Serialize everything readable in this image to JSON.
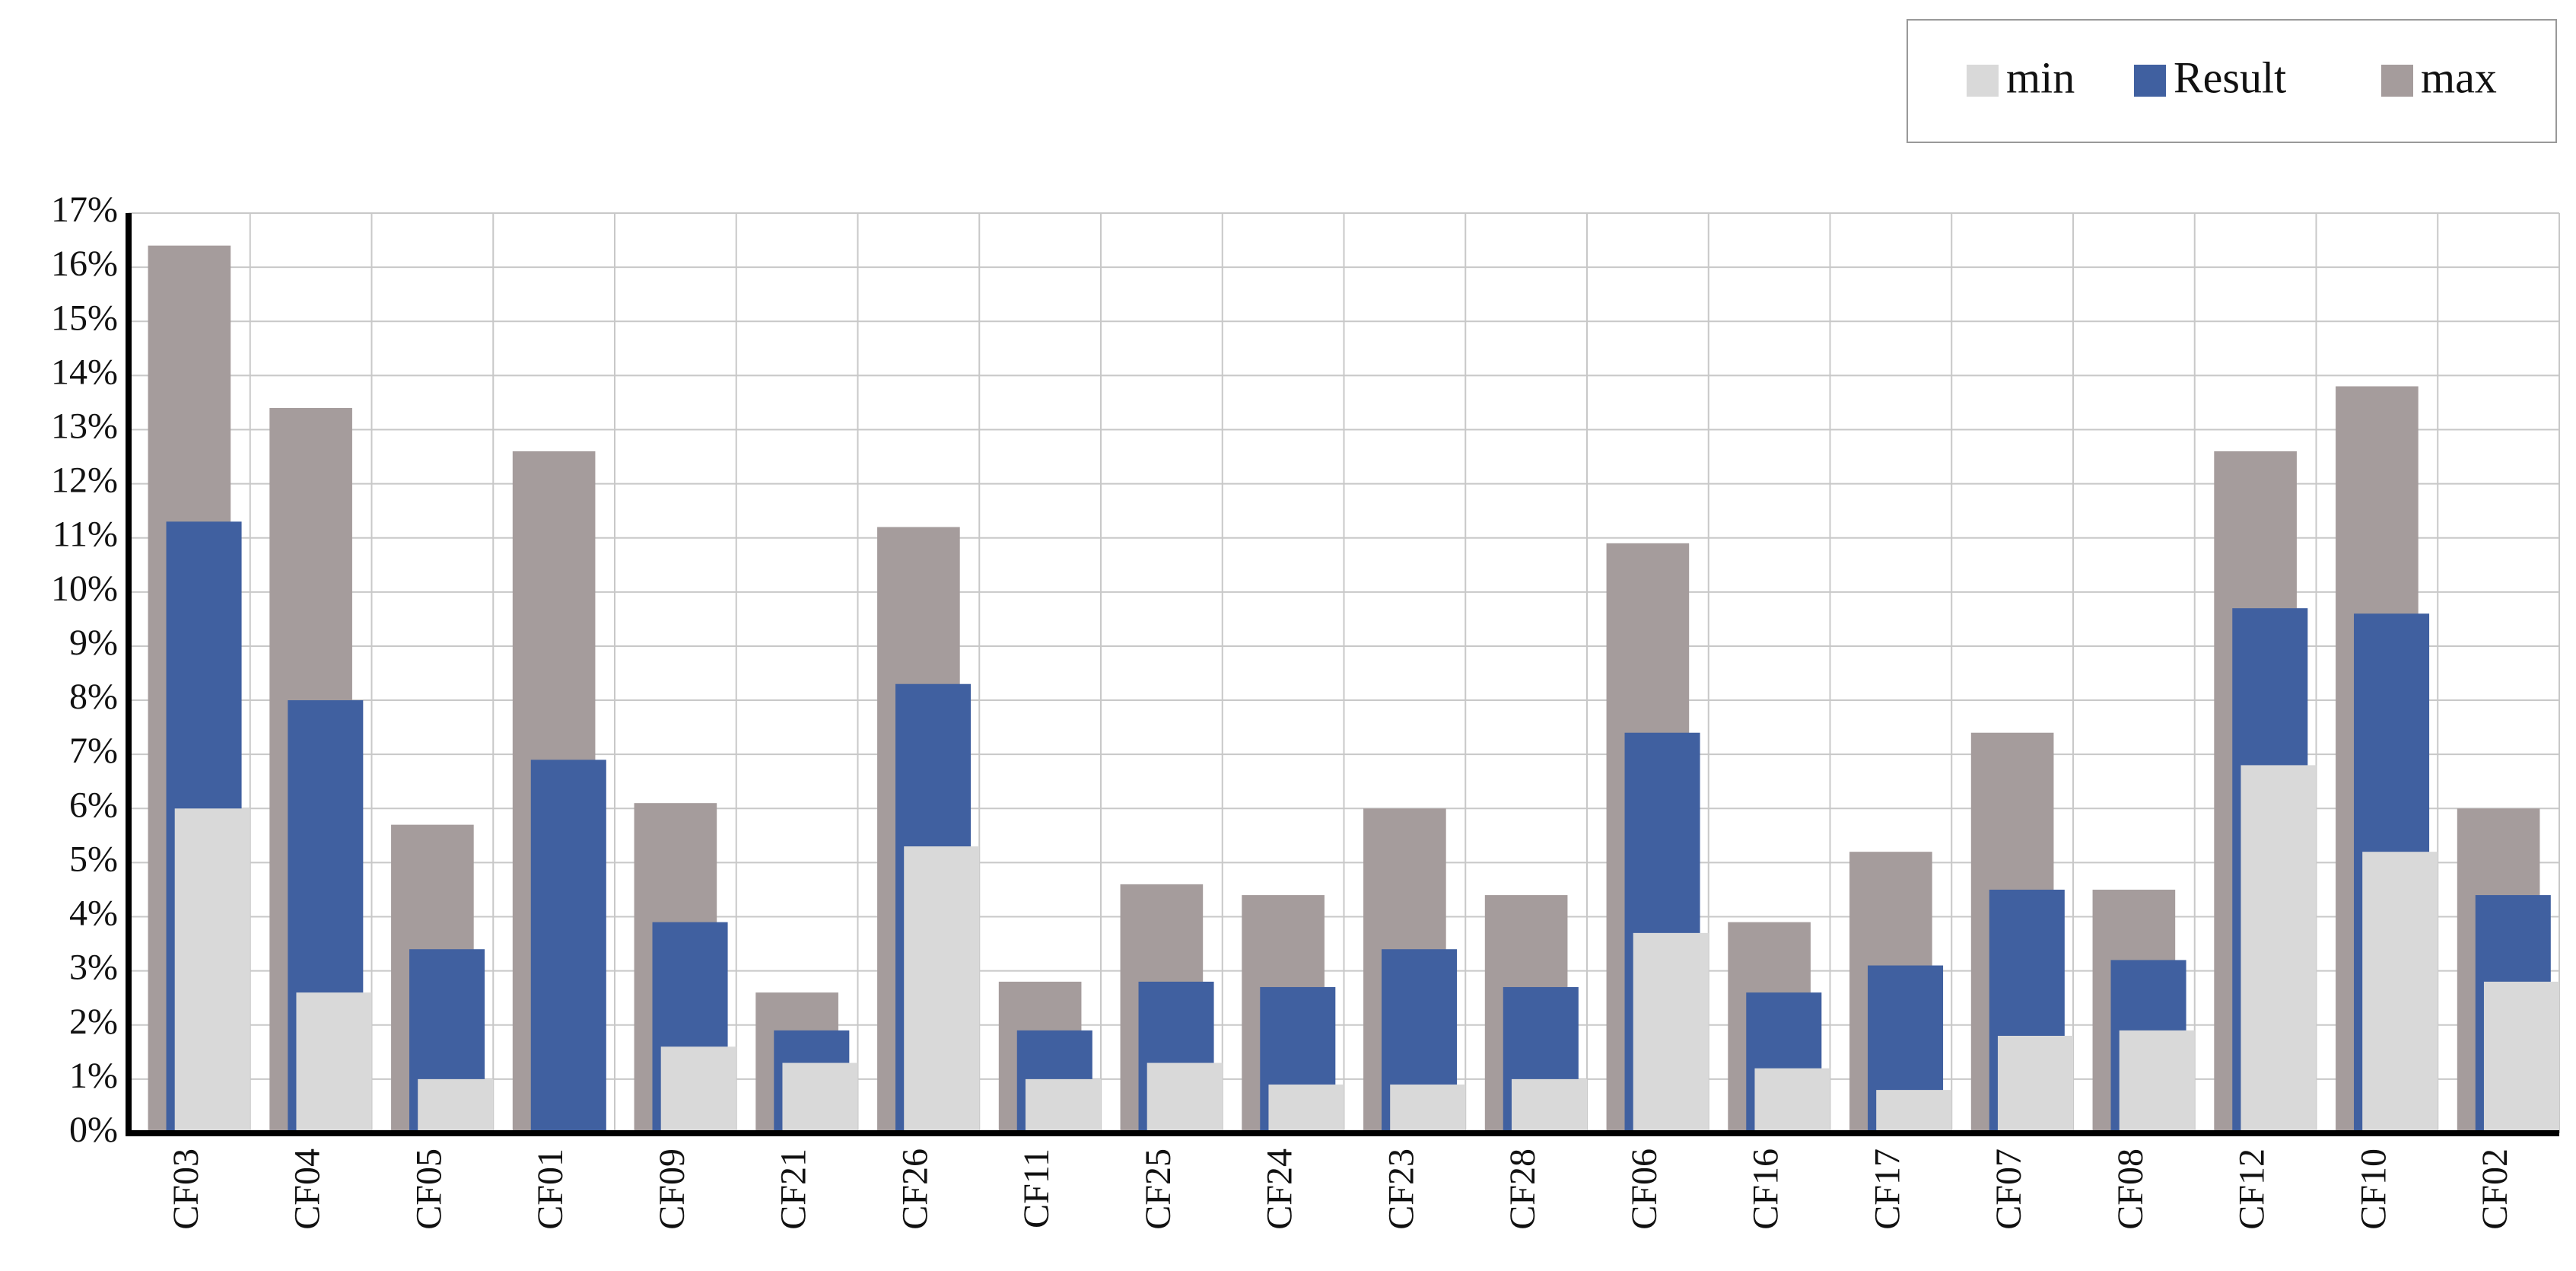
{
  "chart_data": {
    "type": "bar",
    "categories": [
      "CF03",
      "CF04",
      "CF05",
      "CF01",
      "CF09",
      "CF21",
      "CF26",
      "CF11",
      "CF25",
      "CF24",
      "CF23",
      "CF28",
      "CF06",
      "CF16",
      "CF17",
      "CF07",
      "CF08",
      "CF12",
      "CF10",
      "CF02"
    ],
    "series": [
      {
        "name": "min",
        "color": "#d9d9d9",
        "values": [
          6.0,
          2.6,
          1.0,
          0,
          1.6,
          1.3,
          5.3,
          1.0,
          1.3,
          0.9,
          0.9,
          1.0,
          3.7,
          1.2,
          0.8,
          1.8,
          1.9,
          6.8,
          5.2,
          2.8
        ]
      },
      {
        "name": "Result",
        "color": "#4060a0",
        "values": [
          11.3,
          8.0,
          3.4,
          6.9,
          3.9,
          1.9,
          8.3,
          1.9,
          2.8,
          2.7,
          3.4,
          2.7,
          7.4,
          2.6,
          3.1,
          4.5,
          3.2,
          9.7,
          9.6,
          4.4
        ]
      },
      {
        "name": "max",
        "color": "#a59c9c",
        "values": [
          16.4,
          13.4,
          5.7,
          12.6,
          6.1,
          2.6,
          11.2,
          2.8,
          4.6,
          4.4,
          6.0,
          4.4,
          10.9,
          3.9,
          5.2,
          7.4,
          4.5,
          12.6,
          13.8,
          6.0
        ]
      }
    ],
    "ylim": [
      0,
      17
    ],
    "yticks": [
      {
        "value": 0,
        "label": "0%"
      },
      {
        "value": 1,
        "label": "1%"
      },
      {
        "value": 2,
        "label": "2%"
      },
      {
        "value": 3,
        "label": "3%"
      },
      {
        "value": 4,
        "label": "4%"
      },
      {
        "value": 5,
        "label": "5%"
      },
      {
        "value": 6,
        "label": "6%"
      },
      {
        "value": 7,
        "label": "7%"
      },
      {
        "value": 8,
        "label": "8%"
      },
      {
        "value": 9,
        "label": "9%"
      },
      {
        "value": 10,
        "label": "10%"
      },
      {
        "value": 11,
        "label": "11%"
      },
      {
        "value": 12,
        "label": "12%"
      },
      {
        "value": 13,
        "label": "13%"
      },
      {
        "value": 14,
        "label": "14%"
      },
      {
        "value": 15,
        "label": "15%"
      },
      {
        "value": 16,
        "label": "16%"
      },
      {
        "value": 17,
        "label": "17%"
      }
    ],
    "grid": true,
    "legend": "top-right"
  }
}
